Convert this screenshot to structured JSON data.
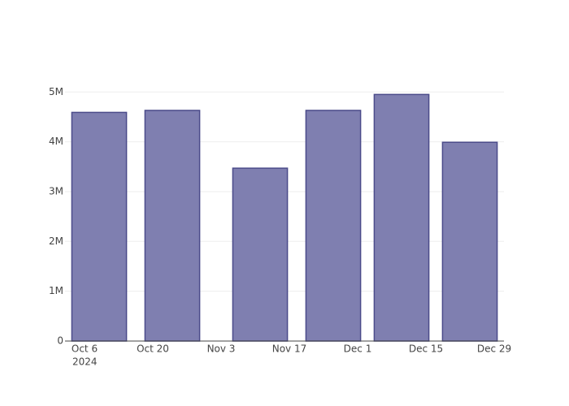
{
  "chart_data": {
    "type": "bar",
    "x": [
      "2024-10-09",
      "2024-10-24",
      "2024-11-11",
      "2024-11-26",
      "2024-12-10",
      "2024-12-24"
    ],
    "values": [
      4590000,
      4630000,
      3470000,
      4630000,
      4950000,
      3990000
    ],
    "color": "#7f7fb0",
    "edge_color": "#4b4b8a",
    "xlim": [
      "2024-10-02",
      "2024-12-31"
    ],
    "xticks": [
      {
        "value": "2024-10-06",
        "label": "Oct 6"
      },
      {
        "value": "2024-10-20",
        "label": "Oct 20"
      },
      {
        "value": "2024-11-03",
        "label": "Nov 3"
      },
      {
        "value": "2024-11-17",
        "label": "Nov 17"
      },
      {
        "value": "2024-12-01",
        "label": "Dec 1"
      },
      {
        "value": "2024-12-15",
        "label": "Dec 15"
      },
      {
        "value": "2024-12-29",
        "label": "Dec 29"
      }
    ],
    "x_year_label": "2024",
    "ylim": [
      0,
      5200000
    ],
    "yticks": [
      0,
      {
        "value": 1000000,
        "label": "1M"
      },
      {
        "value": 2000000,
        "label": "2M"
      },
      {
        "value": 3000000,
        "label": "3M"
      },
      {
        "value": 4000000,
        "label": "4M"
      },
      {
        "value": 5000000,
        "label": "5M"
      }
    ],
    "grid": true
  }
}
